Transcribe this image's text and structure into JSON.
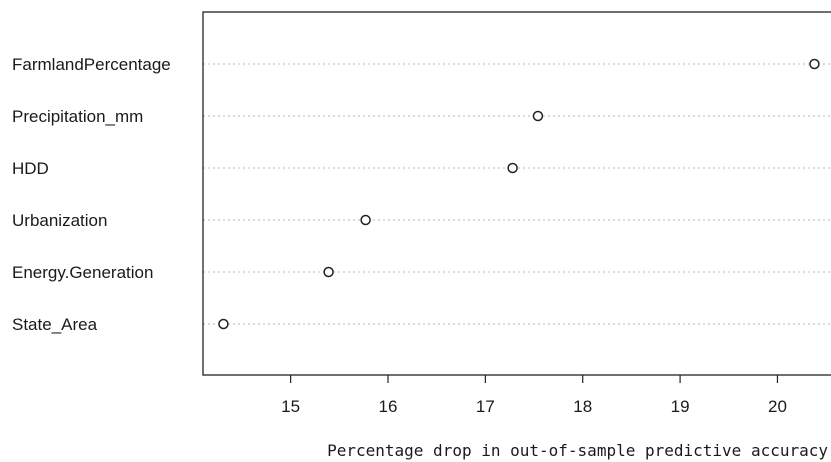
{
  "chart_data": {
    "type": "scatter",
    "title": "",
    "xlabel": "Percentage drop in out-of-sample predictive accuracy",
    "ylabel": "",
    "xlim": [
      14.1,
      20.55
    ],
    "xticks": [
      15,
      16,
      17,
      18,
      19,
      20
    ],
    "grid": "dotted horizontal guide per variable",
    "marker": "open circle",
    "categories": [
      "FarmlandPercentage",
      "Precipitation_mm",
      "HDD",
      "Urbanization",
      "Energy.Generation",
      "State_Area"
    ],
    "values": [
      20.38,
      17.54,
      17.28,
      15.77,
      15.39,
      14.31
    ]
  }
}
